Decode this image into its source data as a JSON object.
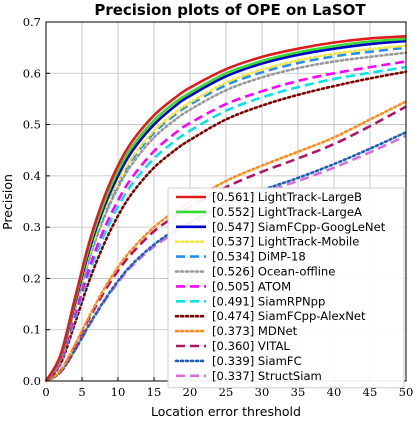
{
  "chart_data": {
    "type": "line",
    "title": "Precision plots of OPE on LaSOT",
    "xlabel": "Location error threshold",
    "ylabel": "Precision",
    "xlim": [
      0,
      50
    ],
    "ylim": [
      0,
      0.7
    ],
    "xticks": [
      "0",
      "5",
      "10",
      "15",
      "20",
      "25",
      "30",
      "35",
      "40",
      "45",
      "50"
    ],
    "yticks": [
      "0.0",
      "0.1",
      "0.2",
      "0.3",
      "0.4",
      "0.5",
      "0.6",
      "0.7"
    ],
    "grid": true,
    "legend_position": "bottom-right",
    "series": [
      {
        "name": "[0.561] LightTrack-LargeB",
        "color": "#e31a1c",
        "dash": "solid",
        "x": [
          0,
          2,
          4,
          6,
          8,
          10,
          12,
          15,
          18,
          20,
          25,
          30,
          35,
          40,
          45,
          50
        ],
        "y": [
          0,
          0.05,
          0.16,
          0.27,
          0.355,
          0.42,
          0.468,
          0.518,
          0.553,
          0.572,
          0.608,
          0.632,
          0.648,
          0.66,
          0.668,
          0.672
        ]
      },
      {
        "name": "[0.552] LightTrack-LargeA",
        "color": "#33dd33",
        "dash": "solid",
        "x": [
          0,
          2,
          4,
          6,
          8,
          10,
          12,
          15,
          18,
          20,
          25,
          30,
          35,
          40,
          45,
          50
        ],
        "y": [
          0,
          0.048,
          0.155,
          0.262,
          0.345,
          0.41,
          0.458,
          0.508,
          0.544,
          0.562,
          0.6,
          0.624,
          0.641,
          0.653,
          0.662,
          0.667
        ]
      },
      {
        "name": "[0.547] SiamFCpp-GoogLeNet",
        "color": "#0000cc",
        "dash": "solid",
        "x": [
          0,
          2,
          4,
          6,
          8,
          10,
          12,
          15,
          18,
          20,
          25,
          30,
          35,
          40,
          45,
          50
        ],
        "y": [
          0,
          0.046,
          0.15,
          0.255,
          0.337,
          0.4,
          0.449,
          0.5,
          0.537,
          0.556,
          0.594,
          0.619,
          0.636,
          0.648,
          0.657,
          0.663
        ]
      },
      {
        "name": "[0.537] LightTrack-Mobile",
        "color": "#f5e642",
        "dash": "dotted",
        "x": [
          0,
          2,
          4,
          6,
          8,
          10,
          12,
          15,
          18,
          20,
          25,
          30,
          35,
          40,
          45,
          50
        ],
        "y": [
          0,
          0.044,
          0.145,
          0.247,
          0.327,
          0.388,
          0.437,
          0.488,
          0.524,
          0.543,
          0.582,
          0.607,
          0.625,
          0.638,
          0.647,
          0.654
        ]
      },
      {
        "name": "[0.534] DiMP-18",
        "color": "#1e90ff",
        "dash": "dashed",
        "x": [
          0,
          2,
          4,
          6,
          8,
          10,
          12,
          15,
          18,
          20,
          25,
          30,
          35,
          40,
          45,
          50
        ],
        "y": [
          0,
          0.043,
          0.143,
          0.243,
          0.323,
          0.385,
          0.433,
          0.484,
          0.52,
          0.539,
          0.577,
          0.602,
          0.62,
          0.633,
          0.642,
          0.65
        ]
      },
      {
        "name": "[0.526] Ocean-offline",
        "color": "#999999",
        "dash": "dotted",
        "x": [
          0,
          2,
          4,
          6,
          8,
          10,
          12,
          15,
          18,
          20,
          25,
          30,
          35,
          40,
          45,
          50
        ],
        "y": [
          0,
          0.042,
          0.14,
          0.238,
          0.316,
          0.377,
          0.424,
          0.475,
          0.51,
          0.529,
          0.567,
          0.592,
          0.61,
          0.623,
          0.632,
          0.64
        ]
      },
      {
        "name": "[0.505] ATOM",
        "color": "#ff00ff",
        "dash": "dashed",
        "x": [
          0,
          2,
          4,
          6,
          8,
          10,
          12,
          15,
          18,
          20,
          25,
          30,
          35,
          40,
          45,
          50
        ],
        "y": [
          0,
          0.038,
          0.128,
          0.22,
          0.294,
          0.352,
          0.398,
          0.448,
          0.484,
          0.503,
          0.54,
          0.565,
          0.585,
          0.6,
          0.612,
          0.623
        ]
      },
      {
        "name": "[0.491] SiamRPNpp",
        "color": "#00e5e5",
        "dash": "dashed",
        "x": [
          0,
          2,
          4,
          6,
          8,
          10,
          12,
          15,
          18,
          20,
          25,
          30,
          35,
          40,
          45,
          50
        ],
        "y": [
          0,
          0.036,
          0.122,
          0.21,
          0.282,
          0.34,
          0.385,
          0.434,
          0.469,
          0.488,
          0.527,
          0.553,
          0.573,
          0.589,
          0.601,
          0.612
        ]
      },
      {
        "name": "[0.474] SiamFCpp-AlexNet",
        "color": "#800000",
        "dash": "dotted",
        "x": [
          0,
          2,
          4,
          6,
          8,
          10,
          12,
          15,
          18,
          20,
          25,
          30,
          35,
          40,
          45,
          50
        ],
        "y": [
          0,
          0.033,
          0.112,
          0.195,
          0.265,
          0.322,
          0.367,
          0.416,
          0.451,
          0.47,
          0.51,
          0.537,
          0.558,
          0.575,
          0.59,
          0.603
        ]
      },
      {
        "name": "[0.373] MDNet",
        "color": "#ff8c1a",
        "dash": "dotted",
        "x": [
          0,
          2,
          4,
          6,
          8,
          10,
          12,
          15,
          18,
          20,
          25,
          30,
          35,
          40,
          45,
          50
        ],
        "y": [
          0,
          0.02,
          0.07,
          0.126,
          0.178,
          0.222,
          0.258,
          0.3,
          0.332,
          0.35,
          0.39,
          0.42,
          0.447,
          0.475,
          0.51,
          0.545
        ]
      },
      {
        "name": "[0.360] VITAL",
        "color": "#b0156a",
        "dash": "dashed",
        "x": [
          0,
          2,
          4,
          6,
          8,
          10,
          12,
          15,
          18,
          20,
          25,
          30,
          35,
          40,
          45,
          50
        ],
        "y": [
          0,
          0.02,
          0.068,
          0.122,
          0.172,
          0.215,
          0.25,
          0.292,
          0.322,
          0.34,
          0.378,
          0.408,
          0.434,
          0.462,
          0.497,
          0.535
        ]
      },
      {
        "name": "[0.339] SiamFC",
        "color": "#1f5fbf",
        "dash": "dotted",
        "x": [
          0,
          2,
          4,
          6,
          8,
          10,
          12,
          15,
          18,
          20,
          25,
          30,
          35,
          40,
          45,
          50
        ],
        "y": [
          0,
          0.017,
          0.06,
          0.11,
          0.155,
          0.195,
          0.228,
          0.266,
          0.295,
          0.31,
          0.345,
          0.372,
          0.396,
          0.423,
          0.453,
          0.485
        ]
      },
      {
        "name": "[0.337] StructSiam",
        "color": "#d86fd8",
        "dash": "dashed",
        "x": [
          0,
          2,
          4,
          6,
          8,
          10,
          12,
          15,
          18,
          20,
          25,
          30,
          35,
          40,
          45,
          50
        ],
        "y": [
          0,
          0.017,
          0.059,
          0.108,
          0.153,
          0.192,
          0.225,
          0.262,
          0.29,
          0.306,
          0.34,
          0.367,
          0.39,
          0.416,
          0.446,
          0.478
        ]
      }
    ]
  }
}
